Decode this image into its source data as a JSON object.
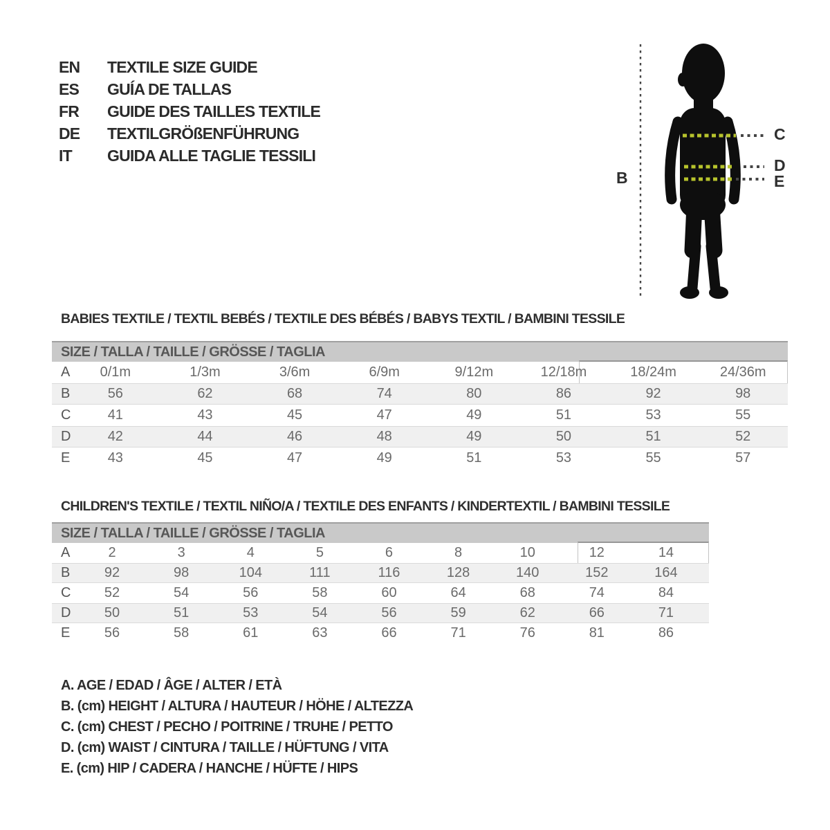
{
  "languages": [
    {
      "code": "EN",
      "title": "TEXTILE SIZE GUIDE"
    },
    {
      "code": "ES",
      "title": "GUÍA DE TALLAS"
    },
    {
      "code": "FR",
      "title": "GUIDE DES TAILLES TEXTILE"
    },
    {
      "code": "DE",
      "title": "TEXTILGRÖßENFÜHRUNG"
    },
    {
      "code": "IT",
      "title": "GUIDA ALLE TAGLIE TESSILI"
    }
  ],
  "figure": {
    "height_label": "B",
    "chest_label": "C",
    "waist_label": "D",
    "hip_label": "E"
  },
  "babies_table": {
    "title": "BABIES TEXTILE / TEXTIL BEBÉS / TEXTILE DES BÉBÉS / BABYS TEXTIL / BAMBINI TESSILE",
    "header": "SIZE / TALLA / TAILLE / GRÖSSE / TAGLIA",
    "rows": [
      {
        "label": "A",
        "values": [
          "0/1m",
          "1/3m",
          "3/6m",
          "6/9m",
          "9/12m",
          "12/18m",
          "18/24m",
          "24/36m"
        ]
      },
      {
        "label": "B",
        "values": [
          "56",
          "62",
          "68",
          "74",
          "80",
          "86",
          "92",
          "98"
        ]
      },
      {
        "label": "C",
        "values": [
          "41",
          "43",
          "45",
          "47",
          "49",
          "51",
          "53",
          "55"
        ]
      },
      {
        "label": "D",
        "values": [
          "42",
          "44",
          "46",
          "48",
          "49",
          "50",
          "51",
          "52"
        ]
      },
      {
        "label": "E",
        "values": [
          "43",
          "45",
          "47",
          "49",
          "51",
          "53",
          "55",
          "57"
        ]
      }
    ]
  },
  "children_table": {
    "title": "CHILDREN'S TEXTILE / TEXTIL NIÑO/A / TEXTILE DES ENFANTS / KINDERTEXTIL / BAMBINI TESSILE",
    "header": "SIZE / TALLA / TAILLE / GRÖSSE / TAGLIA",
    "rows": [
      {
        "label": "A",
        "values": [
          "2",
          "3",
          "4",
          "5",
          "6",
          "8",
          "10",
          "12",
          "14"
        ]
      },
      {
        "label": "B",
        "values": [
          "92",
          "98",
          "104",
          "111",
          "116",
          "128",
          "140",
          "152",
          "164"
        ]
      },
      {
        "label": "C",
        "values": [
          "52",
          "54",
          "56",
          "58",
          "60",
          "64",
          "68",
          "74",
          "84"
        ]
      },
      {
        "label": "D",
        "values": [
          "50",
          "51",
          "53",
          "54",
          "56",
          "59",
          "62",
          "66",
          "71"
        ]
      },
      {
        "label": "E",
        "values": [
          "56",
          "58",
          "61",
          "63",
          "66",
          "71",
          "76",
          "81",
          "86"
        ]
      }
    ]
  },
  "legend": [
    "A. AGE / EDAD / ÂGE / ALTER / ETÀ",
    "B. (cm) HEIGHT / ALTURA / HAUTEUR / HÖHE / ALTEZZA",
    "C. (cm) CHEST / PECHO / POITRINE / TRUHE / PETTO",
    "D. (cm) WAIST / CINTURA / TAILLE / HÜFTUNG / VITA",
    "E. (cm) HIP / CADERA / HANCHE / HÜFTE / HIPS"
  ],
  "colors": {
    "silhouette": "#0e0e0e",
    "measure_dash_green": "#b7c32c",
    "measure_dash_dark": "#454545",
    "header_band": "#c9c9c9",
    "row_stripe": "#f0f0f0",
    "text_dark": "#2d2d2d",
    "table_text": "#6a6a6a"
  }
}
